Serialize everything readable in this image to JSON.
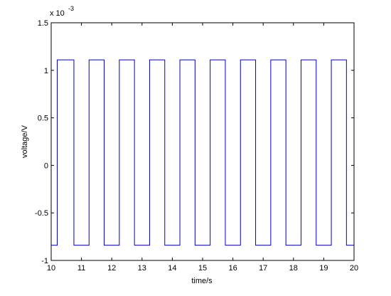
{
  "chart_data": {
    "type": "line",
    "title": "",
    "xlabel": "time/s",
    "ylabel": "voltage/V",
    "y_exponent_label": "x 10",
    "y_exponent_power": "-3",
    "xlim": [
      10,
      20
    ],
    "ylim": [
      -1,
      1.5
    ],
    "x_ticks": [
      {
        "value": 10,
        "label": "10"
      },
      {
        "value": 11,
        "label": "11"
      },
      {
        "value": 12,
        "label": "12"
      },
      {
        "value": 13,
        "label": "13"
      },
      {
        "value": 14,
        "label": "14"
      },
      {
        "value": 15,
        "label": "15"
      },
      {
        "value": 16,
        "label": "16"
      },
      {
        "value": 17,
        "label": "17"
      },
      {
        "value": 18,
        "label": "18"
      },
      {
        "value": 19,
        "label": "19"
      },
      {
        "value": 20,
        "label": "20"
      }
    ],
    "y_ticks": [
      {
        "value": -1,
        "label": "-1"
      },
      {
        "value": -0.5,
        "label": "-0.5"
      },
      {
        "value": 0,
        "label": "0"
      },
      {
        "value": 0.5,
        "label": "0.5"
      },
      {
        "value": 1,
        "label": "1"
      },
      {
        "value": 1.5,
        "label": "1.5"
      }
    ],
    "grid": false,
    "legend": "none",
    "line_color": "#0000cc",
    "series": [
      {
        "x": [
          10.0,
          10.2,
          10.2,
          10.75,
          10.75,
          11.25,
          11.25,
          11.75,
          11.75,
          12.25,
          12.25,
          12.75,
          12.75,
          13.25,
          13.25,
          13.75,
          13.75,
          14.25,
          14.25,
          14.75,
          14.75,
          15.25,
          15.25,
          15.75,
          15.75,
          16.25,
          16.25,
          16.75,
          16.75,
          17.25,
          17.25,
          17.75,
          17.75,
          18.25,
          18.25,
          18.75,
          18.75,
          19.25,
          19.25,
          19.75,
          19.75,
          20.0,
          20.0
        ],
        "y": [
          -0.84,
          -0.84,
          1.11,
          1.11,
          -0.84,
          -0.84,
          1.11,
          1.11,
          -0.84,
          -0.84,
          1.11,
          1.11,
          -0.84,
          -0.84,
          1.11,
          1.11,
          -0.84,
          -0.84,
          1.11,
          1.11,
          -0.84,
          -0.84,
          1.11,
          1.11,
          -0.84,
          -0.84,
          1.11,
          1.11,
          -0.84,
          -0.84,
          1.11,
          1.11,
          -0.84,
          -0.84,
          1.11,
          1.11,
          -0.84,
          -0.84,
          1.11,
          1.11,
          -0.84,
          -0.84,
          1.11
        ]
      }
    ]
  }
}
